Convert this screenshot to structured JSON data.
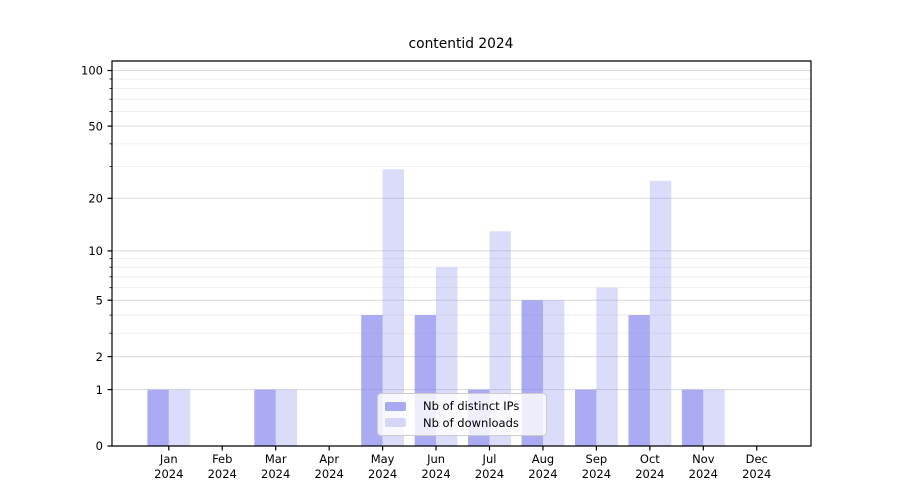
{
  "chart_data": {
    "type": "bar",
    "title": "contentid 2024",
    "categories": [
      "Jan",
      "Feb",
      "Mar",
      "Apr",
      "May",
      "Jun",
      "Jul",
      "Aug",
      "Sep",
      "Oct",
      "Nov",
      "Dec"
    ],
    "category_year": "2024",
    "series": [
      {
        "name": "Nb of distinct IPs",
        "color": "rgba(136,136,238,0.7)",
        "values": [
          1,
          0,
          1,
          0,
          4,
          4,
          1,
          5,
          1,
          4,
          1,
          0
        ]
      },
      {
        "name": "Nb of downloads",
        "color": "rgba(136,136,238,0.3)",
        "values": [
          1,
          0,
          1,
          0,
          29,
          8,
          13,
          5,
          6,
          25,
          1,
          0
        ]
      }
    ],
    "xlabel": "",
    "ylabel": "",
    "yscale": "log1p",
    "ylim": [
      0,
      113
    ],
    "yticks": [
      0,
      1,
      2,
      5,
      10,
      20,
      50,
      100
    ],
    "yticks_minor": [
      3,
      4,
      6,
      7,
      8,
      9,
      30,
      40,
      60,
      70,
      80,
      90
    ],
    "grid": true,
    "legend_position": "lower center"
  }
}
